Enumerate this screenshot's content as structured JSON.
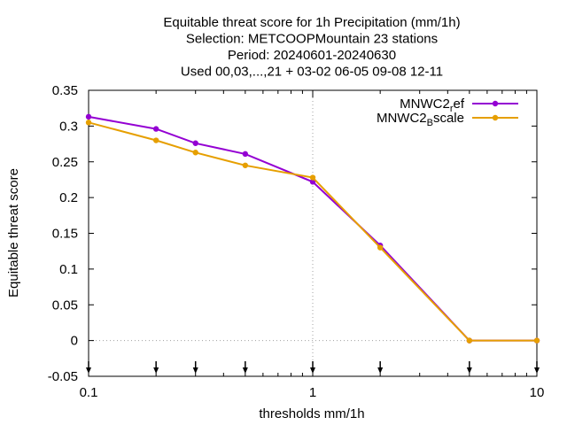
{
  "chart_data": {
    "type": "line",
    "title_lines": [
      "Equitable threat score  for 1h Precipitation (mm/1h)",
      "Selection: METCOOPMountain     23 stations",
      "Period: 20240601-20240630",
      "Used 00,03,...,21 + 03-02 06-05 09-08 12-11"
    ],
    "xlabel": "thresholds mm/1h",
    "ylabel": "Equitable threat score",
    "x_scale": "log",
    "xlim": [
      0.1,
      10
    ],
    "ylim": [
      -0.05,
      0.35
    ],
    "x_ticks": [
      0.1,
      1,
      10
    ],
    "x_tick_labels": [
      "0.1",
      "1",
      "10"
    ],
    "y_ticks": [
      -0.05,
      0,
      0.05,
      0.1,
      0.15,
      0.2,
      0.25,
      0.3,
      0.35
    ],
    "y_tick_labels": [
      "-0.05",
      "0",
      "0.05",
      "0.1",
      "0.15",
      "0.2",
      "0.25",
      "0.3",
      "0.35"
    ],
    "grid": "dotted at x=1 and y=0",
    "legend_position": "top-right",
    "threshold_arrows_x": [
      0.1,
      0.2,
      0.3,
      0.5,
      1,
      2,
      5,
      10
    ],
    "series": [
      {
        "name_main": "MNWC2",
        "name_sub": "r",
        "name_rest": "ef",
        "color": "#9400d3",
        "x": [
          0.1,
          0.2,
          0.3,
          0.5,
          1,
          2,
          5,
          10
        ],
        "y": [
          0.313,
          0.296,
          0.276,
          0.261,
          0.222,
          0.133,
          0.0,
          0.0
        ]
      },
      {
        "name_main": "MNWC2",
        "name_sub": "B",
        "name_rest": "scale",
        "color": "#e69f00",
        "x": [
          0.1,
          0.2,
          0.3,
          0.5,
          1,
          2,
          5,
          10
        ],
        "y": [
          0.305,
          0.28,
          0.263,
          0.245,
          0.228,
          0.13,
          0.0,
          0.0
        ]
      }
    ]
  }
}
